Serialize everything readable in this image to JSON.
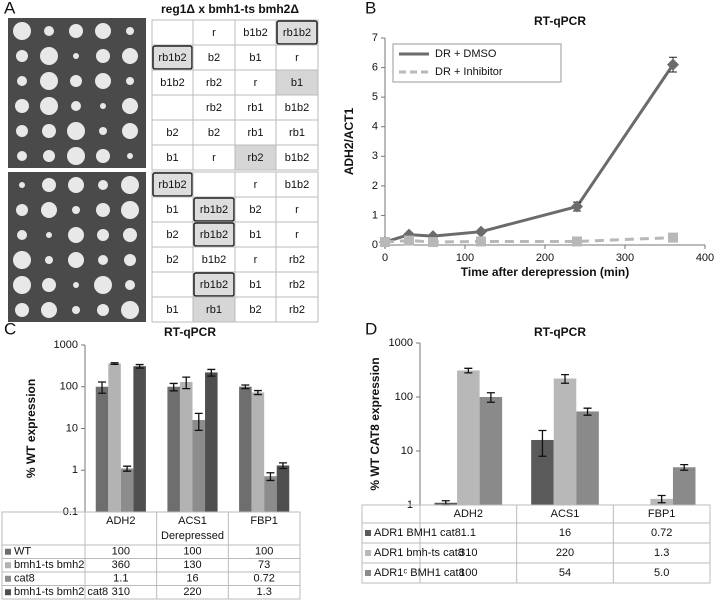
{
  "panels": [
    "A",
    "B",
    "C",
    "D"
  ],
  "panel_a": {
    "title": "reg1Δ x bmh1-ts bmh2Δ",
    "tables": [
      [
        [
          null,
          "r",
          "b1b2",
          "rb1b2"
        ],
        [
          "rb1b2",
          "b2",
          "b1",
          "r"
        ],
        [
          "b1b2",
          "rb2",
          "r",
          "b1"
        ],
        [
          null,
          "rb2",
          "rb1",
          "b1b2"
        ],
        [
          "b2",
          "b2",
          "rb1",
          "rb1"
        ],
        [
          "b1",
          "r",
          "rb2",
          "b1b2"
        ]
      ],
      [
        [
          "rb1b2",
          null,
          "r",
          "b1b2"
        ],
        [
          "b1",
          "rb1b2",
          "b2",
          "r"
        ],
        [
          "b2",
          "rb1b2",
          "b1",
          "r"
        ],
        [
          "b2",
          "b1b2",
          "r",
          "rb2"
        ],
        [
          null,
          "rb1b2",
          "b1",
          "rb2"
        ],
        [
          "b1",
          "rb1",
          "b2",
          "rb2"
        ]
      ]
    ]
  },
  "chart_data": [
    {
      "type": "line",
      "title": "RT-qPCR",
      "xlabel": "Time after derepression (min)",
      "ylabel": "ADH2/ACT1",
      "x": [
        0,
        30,
        60,
        120,
        240,
        360
      ],
      "series": [
        {
          "name": "DR + DMSO",
          "color": "#6b6b6b",
          "marker": "diamond",
          "linestyle": "solid",
          "values": [
            0.1,
            0.35,
            0.3,
            0.45,
            1.3,
            6.1
          ],
          "errors": [
            0.05,
            0.05,
            0.05,
            0.05,
            0.15,
            0.25
          ]
        },
        {
          "name": "DR + Inhibitor",
          "color": "#b8b8b8",
          "marker": "square",
          "linestyle": "dashed",
          "values": [
            0.1,
            0.15,
            0.1,
            0.12,
            0.12,
            0.25
          ]
        }
      ],
      "xlim": [
        0,
        400
      ],
      "xticks": [
        0,
        100,
        200,
        300,
        400
      ],
      "ylim": [
        0,
        7
      ],
      "yticks": [
        0,
        1,
        2,
        3,
        4,
        5,
        6,
        7
      ],
      "legend": "upper left"
    },
    {
      "type": "bar",
      "title": "RT-qPCR",
      "ylabel": "% WT expression",
      "xlabel": "Derepressed",
      "log_scale": true,
      "categories": [
        "ADH2",
        "ACS1",
        "FBP1"
      ],
      "series": [
        {
          "name": "WT",
          "color": "#6e6e6e",
          "values": [
            100,
            100,
            100
          ],
          "errors": [
            30,
            20,
            10
          ]
        },
        {
          "name": "bmh1-ts bmh2",
          "color": "#b3b3b3",
          "values": [
            360,
            130,
            73
          ],
          "errors": [
            15,
            40,
            8
          ]
        },
        {
          "name": "cat8",
          "color": "#8c8c8c",
          "values": [
            1.1,
            16,
            0.72
          ],
          "errors": [
            0.15,
            7,
            0.15
          ]
        },
        {
          "name": "bmh1-ts bmh2 cat8",
          "color": "#4f4f4f",
          "values": [
            310,
            220,
            1.3
          ],
          "errors": [
            30,
            40,
            0.2
          ]
        }
      ],
      "ylim": [
        0.1,
        1000
      ],
      "yticks": [
        0.1,
        1,
        10,
        100,
        1000
      ],
      "legend": "table"
    },
    {
      "type": "bar",
      "title": "RT-qPCR",
      "ylabel": "% WT CAT8 expression",
      "log_scale": true,
      "categories": [
        "ADH2",
        "ACS1",
        "FBP1"
      ],
      "series": [
        {
          "name": "ADR1 BMH1 cat8",
          "color": "#5a5a5a",
          "values": [
            1.1,
            16,
            0.72
          ],
          "errors": [
            0.1,
            8,
            0.05
          ]
        },
        {
          "name": "ADR1 bmh-ts cat8",
          "color": "#b8b8b8",
          "values": [
            310,
            220,
            1.3
          ],
          "errors": [
            30,
            40,
            0.2
          ]
        },
        {
          "name": "ADR1ᶜ BMH1 cat8",
          "color": "#8a8a8a",
          "values": [
            100,
            54,
            5.0
          ],
          "value_labels": [
            "100",
            "54",
            "5.0"
          ],
          "errors": [
            20,
            8,
            0.6
          ]
        }
      ],
      "ylim": [
        1,
        1000
      ],
      "yticks": [
        1,
        10,
        100,
        1000
      ],
      "legend": "table"
    }
  ]
}
